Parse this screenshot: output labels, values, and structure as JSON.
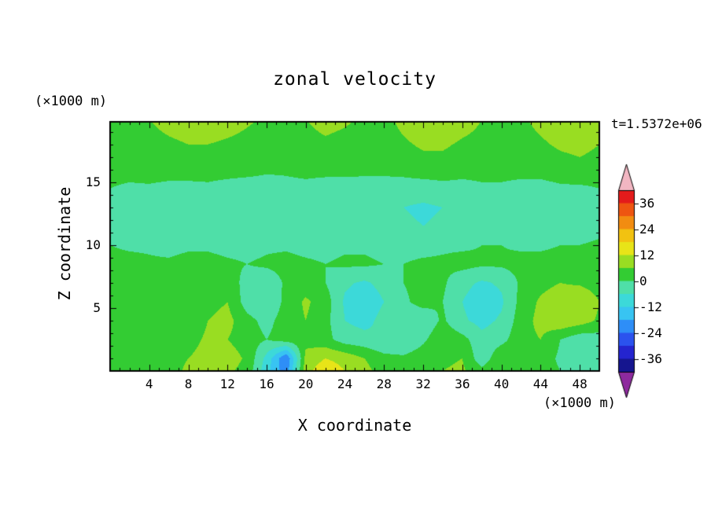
{
  "figure": {
    "title": "zonal velocity",
    "time_label": "t=1.5372e+06",
    "x_axis": {
      "label": "X coordinate",
      "unit": "(×1000 m)",
      "ticks": [
        4,
        8,
        12,
        16,
        20,
        24,
        28,
        32,
        36,
        40,
        44,
        48
      ],
      "range": [
        0,
        50
      ]
    },
    "y_axis": {
      "label": "Z coordinate",
      "unit": "(×1000 m)",
      "ticks": [
        5,
        10,
        15
      ],
      "range": [
        0,
        19.8
      ]
    },
    "colorbar": {
      "tick_labels": [
        36,
        24,
        12,
        0,
        -12,
        -24,
        -36
      ],
      "range": [
        -42,
        42
      ]
    }
  },
  "chart_data": {
    "type": "heatmap",
    "style": "filled-contour",
    "title": "zonal velocity",
    "xlabel": "X coordinate (×1000 m)",
    "ylabel": "Z coordinate (×1000 m)",
    "xlim": [
      0,
      50
    ],
    "ylim": [
      0,
      19.8
    ],
    "levels": [
      -42,
      -36,
      -30,
      -24,
      -18,
      -12,
      -6,
      0,
      6,
      12,
      18,
      24,
      30,
      36,
      42
    ],
    "band_colors": [
      "#15158f",
      "#2424cf",
      "#2b52ee",
      "#2e8ef7",
      "#38c4f2",
      "#3cd9d9",
      "#4fdfa8",
      "#33cc33",
      "#99dd22",
      "#e8e418",
      "#f2c211",
      "#f28c11",
      "#ee5511",
      "#e31b1b"
    ],
    "underflow_color": "#8e2a9e",
    "overflow_color": "#f2b6c2",
    "x": [
      0,
      2,
      4,
      6,
      8,
      10,
      12,
      14,
      16,
      18,
      20,
      22,
      24,
      26,
      28,
      30,
      32,
      34,
      36,
      38,
      40,
      42,
      44,
      46,
      48,
      50
    ],
    "z": [
      20,
      18,
      16,
      14.5,
      13,
      11.5,
      10,
      8.5,
      7,
      5.5,
      4,
      2.5,
      1,
      0
    ],
    "values": [
      [
        4,
        5,
        6,
        8,
        9,
        10,
        9,
        7,
        5,
        4,
        6,
        8,
        7,
        5,
        4,
        8,
        11,
        12,
        9,
        6,
        4,
        5,
        8,
        10,
        9,
        7
      ],
      [
        3,
        4,
        4,
        5,
        6,
        6,
        5,
        4,
        3,
        3,
        4,
        5,
        4,
        3,
        3,
        5,
        7,
        7,
        5,
        4,
        3,
        3,
        5,
        7,
        8,
        6
      ],
      [
        2,
        2,
        3,
        3,
        3,
        2,
        2,
        2,
        1,
        1,
        2,
        2,
        2,
        1,
        1,
        2,
        3,
        3,
        2,
        2,
        2,
        2,
        2,
        3,
        4,
        3
      ],
      [
        0,
        -1,
        -1,
        -2,
        -2,
        -1,
        -2,
        -3,
        -3,
        -2,
        -2,
        -3,
        -3,
        -2,
        -2,
        -3,
        -3,
        -2,
        -2,
        -1,
        -1,
        -2,
        -2,
        -1,
        -1,
        0
      ],
      [
        -2,
        -3,
        -3,
        -4,
        -4,
        -3,
        -4,
        -5,
        -5,
        -4,
        -4,
        -5,
        -6,
        -5,
        -5,
        -6,
        -7,
        -6,
        -5,
        -5,
        -4,
        -5,
        -6,
        -5,
        -4,
        -3
      ],
      [
        -2,
        -3,
        -4,
        -4,
        -3,
        -3,
        -4,
        -4,
        -4,
        -3,
        -4,
        -5,
        -5,
        -4,
        -4,
        -5,
        -6,
        -5,
        -4,
        -4,
        -3,
        -4,
        -5,
        -4,
        -3,
        -2
      ],
      [
        0,
        -1,
        -1,
        -2,
        -1,
        -1,
        -2,
        -2,
        -1,
        -1,
        -2,
        -2,
        -1,
        -1,
        -2,
        -2,
        -2,
        -1,
        -1,
        0,
        0,
        -1,
        -1,
        0,
        0,
        1
      ],
      [
        2,
        2,
        1,
        1,
        2,
        2,
        1,
        0,
        1,
        2,
        1,
        0,
        1,
        1,
        0,
        0,
        1,
        1,
        2,
        1,
        1,
        2,
        2,
        2,
        1,
        2
      ],
      [
        3,
        3,
        2,
        1,
        0,
        2,
        3,
        -2,
        -4,
        1,
        3,
        0,
        -5,
        -7,
        -4,
        0,
        2,
        1,
        -4,
        -7,
        -5,
        1,
        4,
        6,
        5,
        3
      ],
      [
        4,
        5,
        4,
        2,
        1,
        4,
        6,
        -3,
        -6,
        2,
        7,
        3,
        -7,
        -10,
        -6,
        -1,
        2,
        0,
        -6,
        -10,
        -7,
        2,
        7,
        10,
        12,
        6
      ],
      [
        3,
        4,
        5,
        3,
        2,
        6,
        8,
        2,
        -2,
        3,
        6,
        2,
        -6,
        -8,
        -4,
        -3,
        -4,
        1,
        -5,
        -8,
        -5,
        3,
        8,
        11,
        9,
        5
      ],
      [
        3,
        3,
        4,
        3,
        4,
        7,
        6,
        3,
        0,
        3,
        4,
        2,
        -3,
        -4,
        -6,
        -5,
        -1,
        4,
        2,
        -4,
        -2,
        4,
        6,
        0,
        -4,
        -3
      ],
      [
        3,
        2,
        3,
        4,
        6,
        8,
        9,
        5,
        -8,
        -24,
        8,
        12,
        10,
        6,
        2,
        1,
        3,
        5,
        6,
        -4,
        5,
        4,
        3,
        -1,
        -3,
        -2
      ],
      [
        3,
        2,
        3,
        4,
        7,
        9,
        7,
        4,
        -10,
        -22,
        10,
        16,
        12,
        8,
        3,
        2,
        4,
        6,
        7,
        2,
        6,
        5,
        3,
        0,
        -2,
        -1
      ]
    ]
  }
}
